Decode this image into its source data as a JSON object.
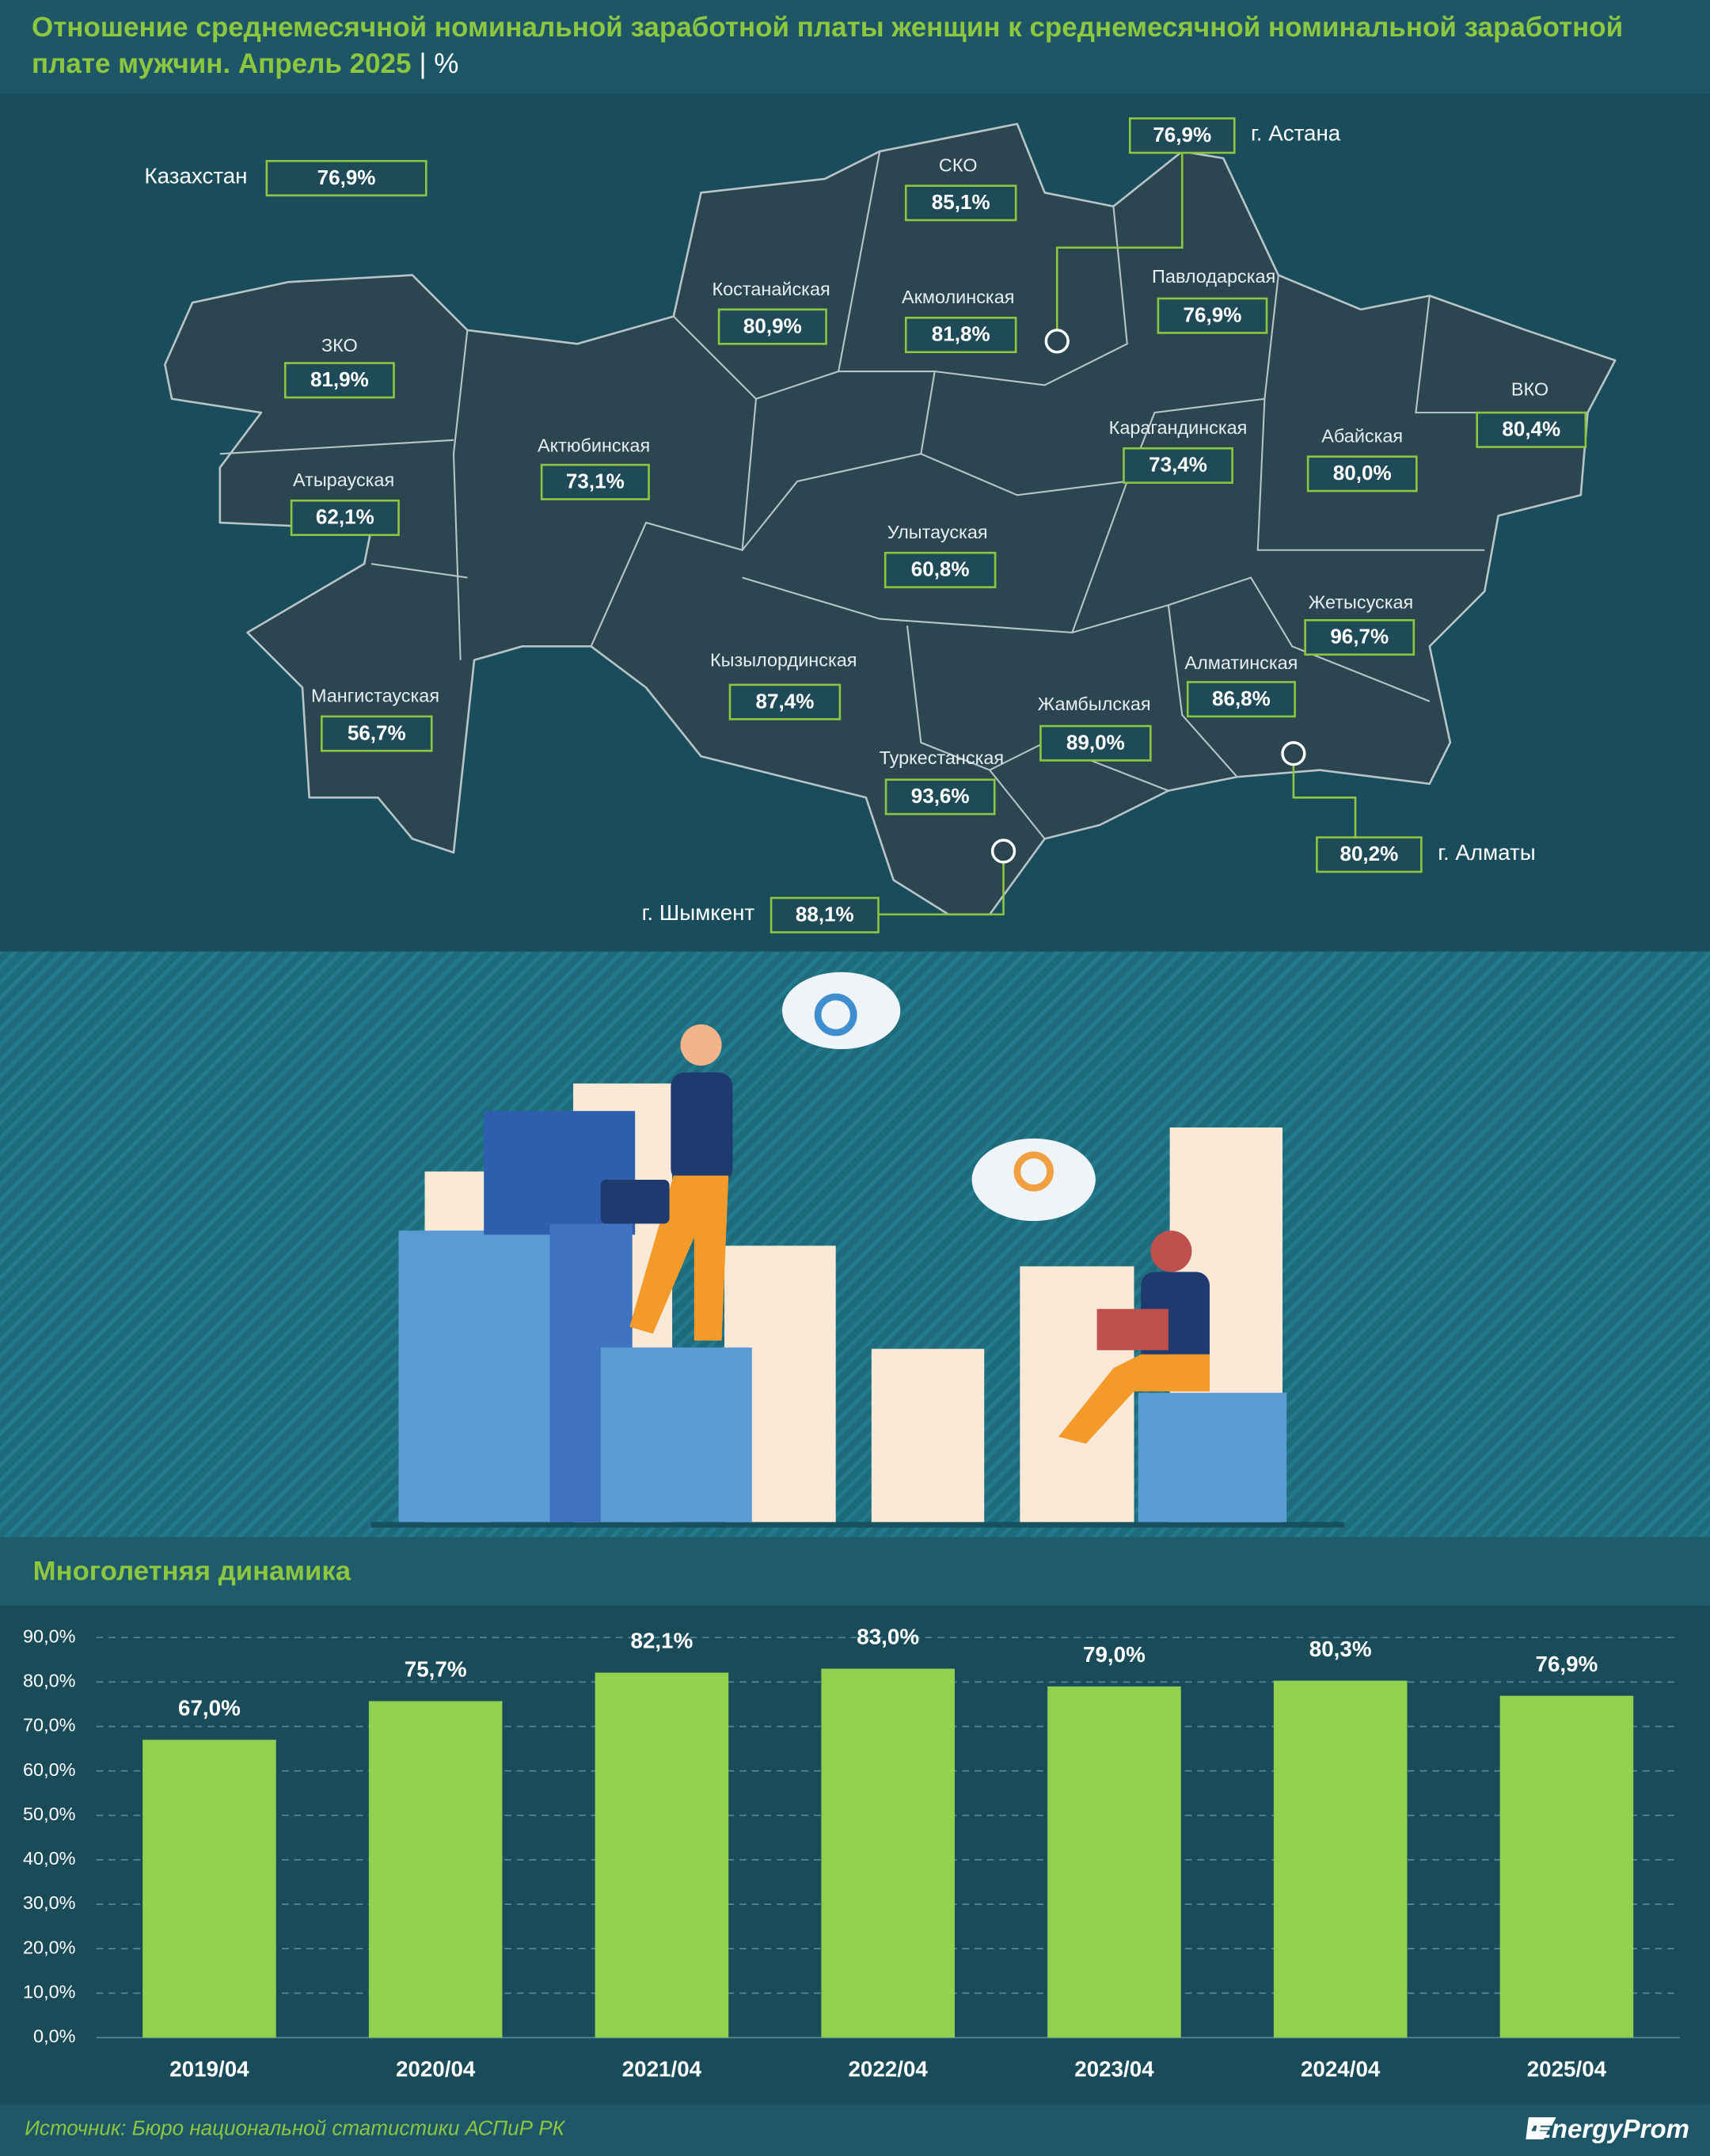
{
  "header": {
    "title": "Отношение среднемесячной номинальной заработной платы женщин к среднемесячной номинальной заработной плате мужчин. Апрель 2025",
    "unit": "| %"
  },
  "map": {
    "country": {
      "name": "Казахстан",
      "value": "76,9%"
    },
    "regions": [
      {
        "name": "г. Астана",
        "value": "76,9%"
      },
      {
        "name": "СКО",
        "value": "85,1%"
      },
      {
        "name": "Костанайская",
        "value": "80,9%"
      },
      {
        "name": "Акмолинская",
        "value": "81,8%"
      },
      {
        "name": "Павлодарская",
        "value": "76,9%"
      },
      {
        "name": "ЗКО",
        "value": "81,9%"
      },
      {
        "name": "Актюбинская",
        "value": "73,1%"
      },
      {
        "name": "Атырауская",
        "value": "62,1%"
      },
      {
        "name": "Карагандинская",
        "value": "73,4%"
      },
      {
        "name": "Абайская",
        "value": "80,0%"
      },
      {
        "name": "ВКО",
        "value": "80,4%"
      },
      {
        "name": "Улытауская",
        "value": "60,8%"
      },
      {
        "name": "Жетысуская",
        "value": "96,7%"
      },
      {
        "name": "Кызылординская",
        "value": "87,4%"
      },
      {
        "name": "Алматинская",
        "value": "86,8%"
      },
      {
        "name": "Мангистауская",
        "value": "56,7%"
      },
      {
        "name": "Жамбылская",
        "value": "89,0%"
      },
      {
        "name": "Туркестанская",
        "value": "93,6%"
      },
      {
        "name": "г. Алматы",
        "value": "80,2%"
      },
      {
        "name": "г. Шымкент",
        "value": "88,1%"
      }
    ]
  },
  "chart_data": {
    "type": "bar",
    "title": "Многолетняя динамика",
    "categories": [
      "2019/04",
      "2020/04",
      "2021/04",
      "2022/04",
      "2023/04",
      "2024/04",
      "2025/04"
    ],
    "values": [
      67.0,
      75.7,
      82.1,
      83.0,
      79.0,
      80.3,
      76.9
    ],
    "value_labels": [
      "67,0%",
      "75,7%",
      "82,1%",
      "83,0%",
      "79,0%",
      "80,3%",
      "76,9%"
    ],
    "color": "#92d050",
    "ylim": [
      0,
      90
    ],
    "yticks": [
      {
        "value": 0,
        "label": "0,0%"
      },
      {
        "value": 10,
        "label": "10,0%"
      },
      {
        "value": 20,
        "label": "20,0%"
      },
      {
        "value": 30,
        "label": "30,0%"
      },
      {
        "value": 40,
        "label": "40,0%"
      },
      {
        "value": 50,
        "label": "50,0%"
      },
      {
        "value": 60,
        "label": "60,0%"
      },
      {
        "value": 70,
        "label": "70,0%"
      },
      {
        "value": 80,
        "label": "80,0%"
      },
      {
        "value": 90,
        "label": "90,0%"
      }
    ],
    "grid": true
  },
  "footer": {
    "source": "Источник: Бюро национальной статистики АСПиР РК",
    "logo": "EnergyProm"
  }
}
